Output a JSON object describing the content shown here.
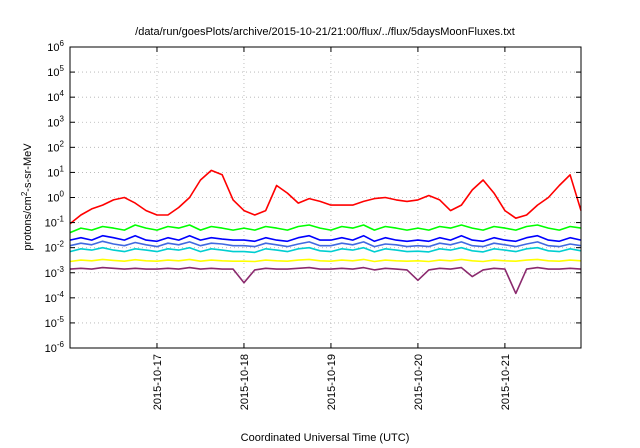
{
  "chart_data": {
    "type": "line",
    "title": "/data/run/goesPlots/archive/2015-10-21/21:00/flux/../flux/5daysMoonFluxes.txt",
    "xlabel": "Coordinated Universal Time (UTC)",
    "ylabel": {
      "prefix": "protons/cm",
      "sup": "2",
      "suffix": "-s-sr-MeV"
    },
    "yscale": "log",
    "ylim": [
      1e-06,
      1000000.0
    ],
    "yticks": [
      {
        "base": "10",
        "exp": "-6",
        "value": 1e-06
      },
      {
        "base": "10",
        "exp": "-5",
        "value": 1e-05
      },
      {
        "base": "10",
        "exp": "-4",
        "value": 0.0001
      },
      {
        "base": "10",
        "exp": "-3",
        "value": 0.001
      },
      {
        "base": "10",
        "exp": "-2",
        "value": 0.01
      },
      {
        "base": "10",
        "exp": "-1",
        "value": 0.1
      },
      {
        "base": "10",
        "exp": "0",
        "value": 1
      },
      {
        "base": "10",
        "exp": "1",
        "value": 10
      },
      {
        "base": "10",
        "exp": "2",
        "value": 100
      },
      {
        "base": "10",
        "exp": "3",
        "value": 1000
      },
      {
        "base": "10",
        "exp": "4",
        "value": 10000
      },
      {
        "base": "10",
        "exp": "5",
        "value": 100000
      },
      {
        "base": "10",
        "exp": "6",
        "value": 1000000
      }
    ],
    "xlim": [
      "2015-10-16T00:00",
      "2015-10-21T21:00"
    ],
    "xticks": [
      {
        "label": "2015-10-17",
        "t": "2015-10-17T00:00"
      },
      {
        "label": "2015-10-18",
        "t": "2015-10-18T00:00"
      },
      {
        "label": "2015-10-19",
        "t": "2015-10-19T00:00"
      },
      {
        "label": "2015-10-20",
        "t": "2015-10-20T00:00"
      },
      {
        "label": "2015-10-21",
        "t": "2015-10-21T00:00"
      }
    ],
    "grid": true,
    "legend": "none",
    "x": [
      "2015-10-16T00:00",
      "2015-10-16T03:00",
      "2015-10-16T06:00",
      "2015-10-16T09:00",
      "2015-10-16T12:00",
      "2015-10-16T15:00",
      "2015-10-16T18:00",
      "2015-10-16T21:00",
      "2015-10-17T00:00",
      "2015-10-17T03:00",
      "2015-10-17T06:00",
      "2015-10-17T09:00",
      "2015-10-17T12:00",
      "2015-10-17T15:00",
      "2015-10-17T18:00",
      "2015-10-17T21:00",
      "2015-10-18T00:00",
      "2015-10-18T03:00",
      "2015-10-18T06:00",
      "2015-10-18T09:00",
      "2015-10-18T12:00",
      "2015-10-18T15:00",
      "2015-10-18T18:00",
      "2015-10-18T21:00",
      "2015-10-19T00:00",
      "2015-10-19T03:00",
      "2015-10-19T06:00",
      "2015-10-19T09:00",
      "2015-10-19T12:00",
      "2015-10-19T15:00",
      "2015-10-19T18:00",
      "2015-10-19T21:00",
      "2015-10-20T00:00",
      "2015-10-20T03:00",
      "2015-10-20T06:00",
      "2015-10-20T09:00",
      "2015-10-20T12:00",
      "2015-10-20T15:00",
      "2015-10-20T18:00",
      "2015-10-20T21:00",
      "2015-10-21T00:00",
      "2015-10-21T03:00",
      "2015-10-21T06:00",
      "2015-10-21T09:00",
      "2015-10-21T12:00",
      "2015-10-21T15:00",
      "2015-10-21T18:00",
      "2015-10-21T21:00"
    ],
    "series": [
      {
        "color": "#ff0000",
        "values": [
          0.09,
          0.2,
          0.35,
          0.5,
          0.8,
          1.0,
          0.6,
          0.3,
          0.2,
          0.2,
          0.4,
          1.0,
          5,
          12,
          8,
          0.8,
          0.3,
          0.2,
          0.3,
          3,
          1.5,
          0.6,
          0.9,
          0.7,
          0.5,
          0.5,
          0.5,
          0.7,
          0.9,
          1.0,
          0.8,
          0.7,
          0.8,
          1.2,
          0.8,
          0.3,
          0.5,
          2,
          5,
          1.5,
          0.3,
          0.15,
          0.2,
          0.5,
          1,
          3,
          8,
          0.3
        ]
      },
      {
        "color": "#00ff00",
        "values": [
          0.04,
          0.06,
          0.05,
          0.07,
          0.06,
          0.05,
          0.08,
          0.06,
          0.05,
          0.07,
          0.06,
          0.08,
          0.05,
          0.07,
          0.06,
          0.05,
          0.06,
          0.05,
          0.07,
          0.06,
          0.05,
          0.07,
          0.08,
          0.06,
          0.05,
          0.07,
          0.06,
          0.08,
          0.05,
          0.07,
          0.06,
          0.05,
          0.06,
          0.05,
          0.07,
          0.06,
          0.08,
          0.06,
          0.05,
          0.07,
          0.06,
          0.05,
          0.07,
          0.08,
          0.06,
          0.05,
          0.07,
          0.06
        ]
      },
      {
        "color": "#0000ff",
        "values": [
          0.02,
          0.025,
          0.02,
          0.03,
          0.025,
          0.02,
          0.03,
          0.02,
          0.018,
          0.025,
          0.02,
          0.03,
          0.02,
          0.025,
          0.022,
          0.02,
          0.02,
          0.018,
          0.025,
          0.02,
          0.018,
          0.025,
          0.03,
          0.02,
          0.02,
          0.025,
          0.02,
          0.03,
          0.018,
          0.025,
          0.02,
          0.018,
          0.02,
          0.018,
          0.025,
          0.02,
          0.03,
          0.02,
          0.018,
          0.025,
          0.02,
          0.018,
          0.025,
          0.03,
          0.02,
          0.018,
          0.025,
          0.02
        ]
      },
      {
        "color": "#4169e1",
        "values": [
          0.012,
          0.015,
          0.013,
          0.018,
          0.014,
          0.012,
          0.016,
          0.013,
          0.011,
          0.015,
          0.013,
          0.017,
          0.012,
          0.015,
          0.014,
          0.012,
          0.012,
          0.011,
          0.015,
          0.013,
          0.011,
          0.014,
          0.017,
          0.012,
          0.012,
          0.015,
          0.013,
          0.017,
          0.011,
          0.014,
          0.013,
          0.011,
          0.012,
          0.011,
          0.015,
          0.013,
          0.017,
          0.012,
          0.011,
          0.015,
          0.013,
          0.011,
          0.014,
          0.017,
          0.012,
          0.011,
          0.014,
          0.012
        ]
      },
      {
        "color": "#00ced1",
        "values": [
          0.007,
          0.009,
          0.008,
          0.01,
          0.008,
          0.007,
          0.009,
          0.008,
          0.007,
          0.009,
          0.008,
          0.01,
          0.007,
          0.009,
          0.008,
          0.007,
          0.007,
          0.0065,
          0.009,
          0.008,
          0.007,
          0.009,
          0.01,
          0.0075,
          0.007,
          0.009,
          0.008,
          0.01,
          0.0068,
          0.009,
          0.008,
          0.007,
          0.0072,
          0.0068,
          0.009,
          0.008,
          0.01,
          0.0075,
          0.0068,
          0.009,
          0.008,
          0.007,
          0.009,
          0.01,
          0.0075,
          0.007,
          0.009,
          0.0075
        ]
      },
      {
        "color": "#ffff00",
        "values": [
          0.0028,
          0.0032,
          0.003,
          0.0034,
          0.0031,
          0.0029,
          0.0033,
          0.003,
          0.0029,
          0.0032,
          0.003,
          0.0034,
          0.0029,
          0.0032,
          0.003,
          0.0029,
          0.0029,
          0.0028,
          0.0032,
          0.003,
          0.0029,
          0.0032,
          0.0034,
          0.003,
          0.0029,
          0.0032,
          0.003,
          0.0034,
          0.0028,
          0.0032,
          0.003,
          0.0029,
          0.003,
          0.0028,
          0.0032,
          0.003,
          0.0034,
          0.003,
          0.0028,
          0.0032,
          0.003,
          0.0029,
          0.0032,
          0.0034,
          0.003,
          0.0029,
          0.0032,
          0.003
        ]
      },
      {
        "color": "#8b2a6e",
        "values": [
          0.0014,
          0.0015,
          0.0014,
          0.0016,
          0.0015,
          0.0014,
          0.0015,
          0.0014,
          0.0014,
          0.0015,
          0.0014,
          0.0016,
          0.0014,
          0.0015,
          0.0014,
          0.0014,
          0.0004,
          0.0013,
          0.0015,
          0.0014,
          0.0014,
          0.0015,
          0.0016,
          0.0014,
          0.0014,
          0.0015,
          0.0014,
          0.0016,
          0.0013,
          0.0015,
          0.0014,
          0.0013,
          0.0005,
          0.0013,
          0.0015,
          0.0014,
          0.0016,
          0.0007,
          0.0013,
          0.0015,
          0.0014,
          0.00015,
          0.0014,
          0.0016,
          0.0014,
          0.0014,
          0.0015,
          0.0014
        ]
      }
    ]
  }
}
